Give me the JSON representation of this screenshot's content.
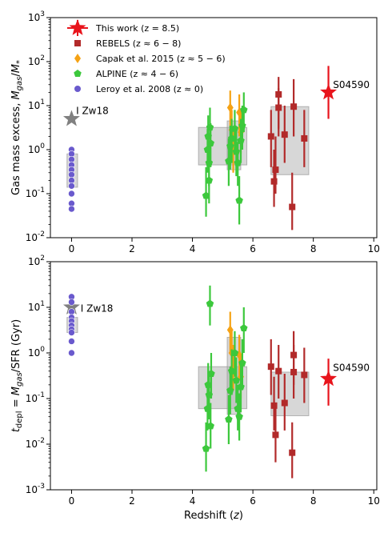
{
  "chart_data": [
    {
      "type": "scatter",
      "panel": "top",
      "ylabel": "Gas mass excess, M_gas/M_*",
      "yscale": "log",
      "ylim": [
        0.01,
        1000
      ],
      "xlim": [
        -0.7,
        10.1
      ],
      "ytick_labels": [
        "10^-2",
        "10^-1",
        "10^0",
        "10^1",
        "10^2",
        "10^3"
      ],
      "xtick_labels": [
        "0",
        "2",
        "4",
        "6",
        "8",
        "10"
      ],
      "legend": {
        "placement": "top-left",
        "entries": [
          {
            "label": "This work (z = 8.5)",
            "marker": "star",
            "color": "#e8141c"
          },
          {
            "label": "REBELS (z ≈ 6 − 8)",
            "marker": "square",
            "color": "#b22a2a"
          },
          {
            "label": "Capak et al. 2015 (z ≈ 5 − 6)",
            "marker": "diamond",
            "color": "#f5a214"
          },
          {
            "label": "ALPINE (z ≈ 4 − 6)",
            "marker": "pentagon",
            "color": "#3cc83c"
          },
          {
            "label": "Leroy et al. 2008 (z ≈ 0)",
            "marker": "circle",
            "color": "#6a5acd"
          }
        ]
      },
      "annotations": [
        {
          "text": "I Zw18",
          "x": 0.15,
          "y": 6.5
        },
        {
          "text": "S04590",
          "x": 8.65,
          "y": 25
        }
      ],
      "boxes": [
        {
          "x0": -0.15,
          "x1": 0.2,
          "y0": 0.14,
          "y1": 0.8
        },
        {
          "x0": 4.2,
          "x1": 5.8,
          "y0": 0.45,
          "y1": 3.2
        },
        {
          "x0": 5.15,
          "x1": 5.6,
          "y0": 0.35,
          "y1": 4.5
        },
        {
          "x0": 6.6,
          "x1": 7.85,
          "y0": 0.27,
          "y1": 9.5
        }
      ],
      "series": [
        {
          "name": "This work (z = 8.5)",
          "marker": "star",
          "color": "#e8141c",
          "points": [
            {
              "x": 8.5,
              "y": 20,
              "ylo": 5,
              "yhi": 80
            }
          ]
        },
        {
          "marker": "star",
          "color": "#808080",
          "annotation": "I Zw18",
          "points": [
            {
              "x": 0.0,
              "y": 5
            }
          ]
        },
        {
          "name": "REBELS (z ≈ 6 − 8)",
          "marker": "square",
          "color": "#b22a2a",
          "points": [
            {
              "x": 6.6,
              "y": 2.0,
              "ylo": 0.4,
              "yhi": 8
            },
            {
              "x": 6.75,
              "y": 0.35,
              "ylo": 0.1,
              "yhi": 2
            },
            {
              "x": 6.7,
              "y": 0.19,
              "ylo": 0.05,
              "yhi": 1
            },
            {
              "x": 6.85,
              "y": 18,
              "ylo": 3,
              "yhi": 45
            },
            {
              "x": 6.85,
              "y": 9,
              "ylo": 2,
              "yhi": 25
            },
            {
              "x": 7.05,
              "y": 2.2,
              "ylo": 0.5,
              "yhi": 10
            },
            {
              "x": 7.3,
              "y": 0.05,
              "ylo": 0.015,
              "yhi": 0.3
            },
            {
              "x": 7.35,
              "y": 9.5,
              "ylo": 2,
              "yhi": 40
            },
            {
              "x": 7.7,
              "y": 1.8,
              "ylo": 0.4,
              "yhi": 8
            }
          ]
        },
        {
          "name": "Capak et al. 2015 (z ≈ 5 − 6)",
          "marker": "diamond",
          "color": "#f5a214",
          "points": [
            {
              "x": 5.25,
              "y": 9,
              "ylo": 3,
              "yhi": 22
            },
            {
              "x": 5.3,
              "y": 2.8,
              "ylo": 0.8,
              "yhi": 8
            },
            {
              "x": 5.35,
              "y": 1.0,
              "ylo": 0.3,
              "yhi": 3
            },
            {
              "x": 5.55,
              "y": 7,
              "ylo": 2,
              "yhi": 18
            },
            {
              "x": 5.6,
              "y": 2.5,
              "ylo": 0.8,
              "yhi": 7
            }
          ]
        },
        {
          "name": "ALPINE (z ≈ 4 − 6)",
          "marker": "pentagon",
          "color": "#3cc83c",
          "points": [
            {
              "x": 4.45,
              "y": 0.09,
              "ylo": 0.03,
              "yhi": 0.4
            },
            {
              "x": 4.5,
              "y": 1.0,
              "ylo": 0.3,
              "yhi": 3
            },
            {
              "x": 4.52,
              "y": 2.0,
              "ylo": 0.6,
              "yhi": 6
            },
            {
              "x": 4.55,
              "y": 0.5,
              "ylo": 0.15,
              "yhi": 1.5
            },
            {
              "x": 4.55,
              "y": 0.2,
              "ylo": 0.06,
              "yhi": 0.7
            },
            {
              "x": 4.58,
              "y": 3.2,
              "ylo": 1,
              "yhi": 9
            },
            {
              "x": 4.6,
              "y": 1.4,
              "ylo": 0.4,
              "yhi": 4
            },
            {
              "x": 5.2,
              "y": 0.55,
              "ylo": 0.15,
              "yhi": 1.8
            },
            {
              "x": 5.25,
              "y": 1.2,
              "ylo": 0.35,
              "yhi": 3.5
            },
            {
              "x": 5.3,
              "y": 1.8,
              "ylo": 0.5,
              "yhi": 5
            },
            {
              "x": 5.4,
              "y": 3.0,
              "ylo": 0.9,
              "yhi": 8
            },
            {
              "x": 5.45,
              "y": 0.9,
              "ylo": 0.25,
              "yhi": 2.8
            },
            {
              "x": 5.5,
              "y": 0.5,
              "ylo": 0.15,
              "yhi": 1.5
            },
            {
              "x": 5.55,
              "y": 0.07,
              "ylo": 0.02,
              "yhi": 0.25
            },
            {
              "x": 5.6,
              "y": 1.6,
              "ylo": 0.5,
              "yhi": 5
            },
            {
              "x": 5.65,
              "y": 3.5,
              "ylo": 1,
              "yhi": 10
            },
            {
              "x": 5.7,
              "y": 8,
              "ylo": 2.5,
              "yhi": 20
            }
          ]
        },
        {
          "name": "Leroy et al. 2008 (z ≈ 0)",
          "marker": "circle",
          "color": "#6a5acd",
          "points": [
            {
              "x": 0,
              "y": 1.0
            },
            {
              "x": 0,
              "y": 0.8
            },
            {
              "x": 0,
              "y": 0.6
            },
            {
              "x": 0,
              "y": 0.45
            },
            {
              "x": 0,
              "y": 0.35
            },
            {
              "x": 0,
              "y": 0.27
            },
            {
              "x": 0,
              "y": 0.2
            },
            {
              "x": 0,
              "y": 0.15
            },
            {
              "x": 0,
              "y": 0.1
            },
            {
              "x": 0,
              "y": 0.06
            },
            {
              "x": 0,
              "y": 0.045
            }
          ]
        }
      ]
    },
    {
      "type": "scatter",
      "panel": "bottom",
      "xlabel": "Redshift (z)",
      "ylabel": "t_depl = M_gas/SFR (Gyr)",
      "yscale": "log",
      "ylim": [
        0.001,
        100
      ],
      "xlim": [
        -0.7,
        10.1
      ],
      "ytick_labels": [
        "10^-3",
        "10^-2",
        "10^-1",
        "10^0",
        "10^1",
        "10^2"
      ],
      "xtick_labels": [
        "0",
        "2",
        "4",
        "6",
        "8",
        "10"
      ],
      "annotations": [
        {
          "text": "I Zw18",
          "x": 0.3,
          "y": 8
        },
        {
          "text": "S04590",
          "x": 8.65,
          "y": 0.4
        }
      ],
      "boxes": [
        {
          "x0": -0.15,
          "x1": 0.2,
          "y0": 2.8,
          "y1": 6
        },
        {
          "x0": 4.2,
          "x1": 5.8,
          "y0": 0.06,
          "y1": 0.5
        },
        {
          "x0": 5.15,
          "x1": 5.6,
          "y0": 0.045,
          "y1": 2.2
        },
        {
          "x0": 6.6,
          "x1": 7.85,
          "y0": 0.042,
          "y1": 0.38
        }
      ],
      "series": [
        {
          "name": "This work (z = 8.5)",
          "marker": "star",
          "color": "#e8141c",
          "points": [
            {
              "x": 8.5,
              "y": 0.27,
              "ylo": 0.07,
              "yhi": 0.75
            }
          ]
        },
        {
          "marker": "star",
          "color": "#808080",
          "annotation": "I Zw18",
          "points": [
            {
              "x": 0.0,
              "y": 10
            }
          ]
        },
        {
          "name": "REBELS (z ≈ 6 − 8)",
          "marker": "square",
          "color": "#b22a2a",
          "points": [
            {
              "x": 6.6,
              "y": 0.5,
              "ylo": 0.12,
              "yhi": 2
            },
            {
              "x": 6.7,
              "y": 0.07,
              "ylo": 0.02,
              "yhi": 0.3
            },
            {
              "x": 6.75,
              "y": 0.016,
              "ylo": 0.004,
              "yhi": 0.07
            },
            {
              "x": 6.85,
              "y": 0.4,
              "ylo": 0.1,
              "yhi": 1.5
            },
            {
              "x": 7.05,
              "y": 0.08,
              "ylo": 0.02,
              "yhi": 0.35
            },
            {
              "x": 7.3,
              "y": 0.0065,
              "ylo": 0.0018,
              "yhi": 0.03
            },
            {
              "x": 7.35,
              "y": 0.9,
              "ylo": 0.2,
              "yhi": 3
            },
            {
              "x": 7.35,
              "y": 0.38,
              "ylo": 0.1,
              "yhi": 1.5
            },
            {
              "x": 7.7,
              "y": 0.33,
              "ylo": 0.08,
              "yhi": 1.3
            }
          ]
        },
        {
          "name": "Capak et al. 2015 (z ≈ 5 − 6)",
          "marker": "diamond",
          "color": "#f5a214",
          "points": [
            {
              "x": 5.25,
              "y": 3.2,
              "ylo": 1,
              "yhi": 8
            },
            {
              "x": 5.3,
              "y": 1.0,
              "ylo": 0.3,
              "yhi": 3
            },
            {
              "x": 5.35,
              "y": 0.5,
              "ylo": 0.15,
              "yhi": 1.5
            },
            {
              "x": 5.55,
              "y": 0.9,
              "ylo": 0.3,
              "yhi": 2.5
            },
            {
              "x": 5.6,
              "y": 0.3,
              "ylo": 0.1,
              "yhi": 0.9
            }
          ]
        },
        {
          "name": "ALPINE (z ≈ 4 − 6)",
          "marker": "pentagon",
          "color": "#3cc83c",
          "points": [
            {
              "x": 4.45,
              "y": 0.008,
              "ylo": 0.0025,
              "yhi": 0.03
            },
            {
              "x": 4.5,
              "y": 0.06,
              "ylo": 0.02,
              "yhi": 0.2
            },
            {
              "x": 4.52,
              "y": 0.2,
              "ylo": 0.06,
              "yhi": 0.6
            },
            {
              "x": 4.55,
              "y": 0.12,
              "ylo": 0.035,
              "yhi": 0.4
            },
            {
              "x": 4.58,
              "y": 12,
              "ylo": 4,
              "yhi": 30
            },
            {
              "x": 4.6,
              "y": 0.025,
              "ylo": 0.008,
              "yhi": 0.08
            },
            {
              "x": 4.62,
              "y": 0.35,
              "ylo": 0.1,
              "yhi": 1
            },
            {
              "x": 5.2,
              "y": 0.035,
              "ylo": 0.01,
              "yhi": 0.12
            },
            {
              "x": 5.25,
              "y": 0.15,
              "ylo": 0.045,
              "yhi": 0.5
            },
            {
              "x": 5.3,
              "y": 0.4,
              "ylo": 0.12,
              "yhi": 1.2
            },
            {
              "x": 5.4,
              "y": 1.0,
              "ylo": 0.3,
              "yhi": 3
            },
            {
              "x": 5.45,
              "y": 0.25,
              "ylo": 0.08,
              "yhi": 0.8
            },
            {
              "x": 5.5,
              "y": 0.06,
              "ylo": 0.02,
              "yhi": 0.2
            },
            {
              "x": 5.55,
              "y": 0.04,
              "ylo": 0.012,
              "yhi": 0.13
            },
            {
              "x": 5.6,
              "y": 0.18,
              "ylo": 0.05,
              "yhi": 0.6
            },
            {
              "x": 5.65,
              "y": 0.6,
              "ylo": 0.18,
              "yhi": 2
            },
            {
              "x": 5.7,
              "y": 3.5,
              "ylo": 1,
              "yhi": 10
            }
          ]
        },
        {
          "name": "Leroy et al. 2008 (z ≈ 0)",
          "marker": "circle",
          "color": "#6a5acd",
          "points": [
            {
              "x": 0,
              "y": 17
            },
            {
              "x": 0,
              "y": 13
            },
            {
              "x": 0,
              "y": 8
            },
            {
              "x": 0,
              "y": 6
            },
            {
              "x": 0,
              "y": 5
            },
            {
              "x": 0,
              "y": 4
            },
            {
              "x": 0,
              "y": 3.3
            },
            {
              "x": 0,
              "y": 2.8
            },
            {
              "x": 0,
              "y": 1.8
            },
            {
              "x": 0,
              "y": 1.0
            }
          ]
        }
      ]
    }
  ]
}
